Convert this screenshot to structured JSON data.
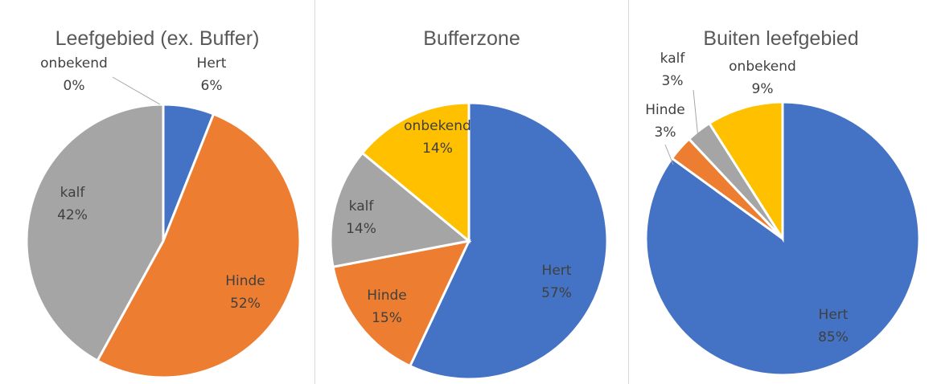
{
  "colors": {
    "Hert": "#4472c4",
    "Hinde": "#ed7d31",
    "kalf": "#a5a5a5",
    "onbekend": "#ffc000"
  },
  "chart_data": [
    {
      "type": "pie",
      "title": "Leefgebied (ex. Buffer)",
      "categories": [
        "Hert",
        "Hinde",
        "kalf",
        "onbekend"
      ],
      "values": [
        6,
        52,
        42,
        0
      ],
      "labels": [
        "6%",
        "52%",
        "42%",
        "0%"
      ]
    },
    {
      "type": "pie",
      "title": "Bufferzone",
      "categories": [
        "Hert",
        "Hinde",
        "kalf",
        "onbekend"
      ],
      "values": [
        57,
        15,
        14,
        14
      ],
      "labels": [
        "57%",
        "15%",
        "14%",
        "14%"
      ]
    },
    {
      "type": "pie",
      "title": "Buiten leefgebied",
      "categories": [
        "Hert",
        "Hinde",
        "kalf",
        "onbekend"
      ],
      "values": [
        85,
        3,
        3,
        9
      ],
      "labels": [
        "85%",
        "3%",
        "3%",
        "9%"
      ]
    }
  ]
}
